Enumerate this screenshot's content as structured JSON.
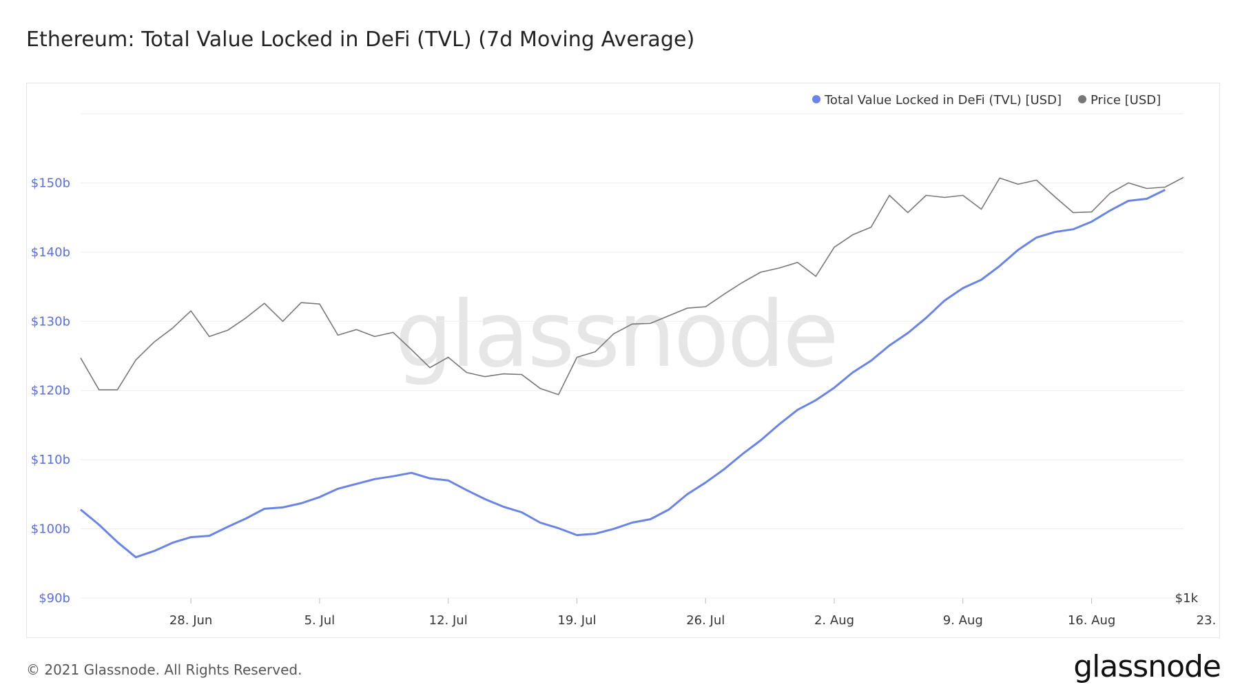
{
  "title": "Ethereum: Total Value Locked in DeFi (TVL) (7d Moving Average)",
  "footer": {
    "copyright": "© 2021 Glassnode. All Rights Reserved.",
    "brand": "glassnode"
  },
  "watermark": "glassnode",
  "colors": {
    "tvl": "#6a84e6",
    "price": "#777777",
    "grid": "#ececec",
    "left_axis_text": "#5b6fd6",
    "axis_text": "#333333",
    "watermark": "#e6e6e6"
  },
  "chart_data": {
    "type": "line",
    "x_start": "2021-06-22",
    "x_ticks": [
      "28. Jun",
      "5. Jul",
      "12. Jul",
      "19. Jul",
      "26. Jul",
      "2. Aug",
      "9. Aug",
      "16. Aug",
      "23. Aug"
    ],
    "y_left": {
      "ticks": [
        "$90b",
        "$100b",
        "$110b",
        "$120b",
        "$130b",
        "$140b",
        "$150b"
      ],
      "min": 90,
      "max": 160
    },
    "y_right": {
      "ticks": [
        "$1k"
      ]
    },
    "legend_position": "top-right",
    "grid": true,
    "series": [
      {
        "name": "Total Value Locked in DeFi (TVL) [USD]",
        "axis": "left",
        "values": [
          102.8,
          100.6,
          98.1,
          95.9,
          96.8,
          98.0,
          98.8,
          99.0,
          100.3,
          101.5,
          102.9,
          103.1,
          103.7,
          104.6,
          105.8,
          106.5,
          107.2,
          107.6,
          108.1,
          107.3,
          107.0,
          105.6,
          104.3,
          103.2,
          102.4,
          100.9,
          100.1,
          99.1,
          99.3,
          100.0,
          100.9,
          101.4,
          102.8,
          105.0,
          106.7,
          108.6,
          110.8,
          112.8,
          115.1,
          117.2,
          118.6,
          120.4,
          122.6,
          124.3,
          126.5,
          128.3,
          130.5,
          133.0,
          134.8,
          136.0,
          138.0,
          140.3,
          142.1,
          142.9,
          143.3,
          144.4,
          146.0,
          147.4,
          147.7,
          149.0
        ]
      },
      {
        "name": "Price [USD]",
        "axis": "right",
        "values": [
          124.7,
          120.1,
          120.1,
          124.4,
          127.0,
          129.0,
          131.5,
          127.8,
          128.7,
          130.5,
          132.6,
          130.0,
          132.7,
          132.5,
          128.0,
          128.8,
          127.8,
          128.4,
          125.9,
          123.3,
          124.8,
          122.6,
          122.0,
          122.4,
          122.3,
          120.3,
          119.4,
          124.8,
          125.6,
          128.2,
          129.6,
          129.7,
          130.8,
          131.9,
          132.1,
          133.9,
          135.6,
          137.1,
          137.7,
          138.5,
          136.5,
          140.7,
          142.5,
          143.6,
          148.2,
          145.7,
          148.2,
          147.9,
          148.2,
          146.2,
          150.7,
          149.8,
          150.4,
          148.0,
          145.7,
          145.8,
          148.5,
          150.0,
          149.2,
          149.4,
          150.8
        ]
      }
    ]
  }
}
